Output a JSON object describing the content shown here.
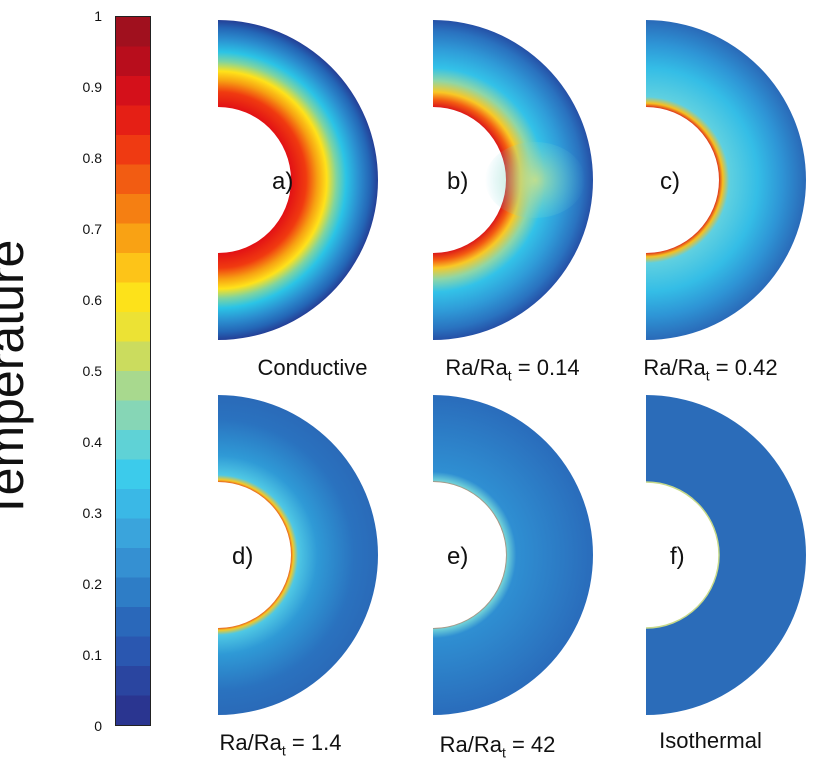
{
  "colorbar": {
    "title": "Temperature",
    "ticks": [
      "1",
      "0.9",
      "0.8",
      "0.7",
      "0.6",
      "0.5",
      "0.4",
      "0.3",
      "0.2",
      "0.1",
      "0"
    ]
  },
  "panels": [
    {
      "letter": "a)",
      "caption": "Conductive",
      "ratio": ""
    },
    {
      "letter": "b)",
      "caption": "Ra/Ra",
      "sub": "t",
      "ratio": " = 0.14"
    },
    {
      "letter": "c)",
      "caption": "Ra/Ra",
      "sub": "t",
      "ratio": " = 0.42"
    },
    {
      "letter": "d)",
      "caption": "Ra/Ra",
      "sub": "t",
      "ratio": " = 1.4"
    },
    {
      "letter": "e)",
      "caption": "Ra/Ra",
      "sub": "t",
      "ratio": " = 42"
    },
    {
      "letter": "f)",
      "caption": "Isothermal",
      "ratio": ""
    }
  ]
}
